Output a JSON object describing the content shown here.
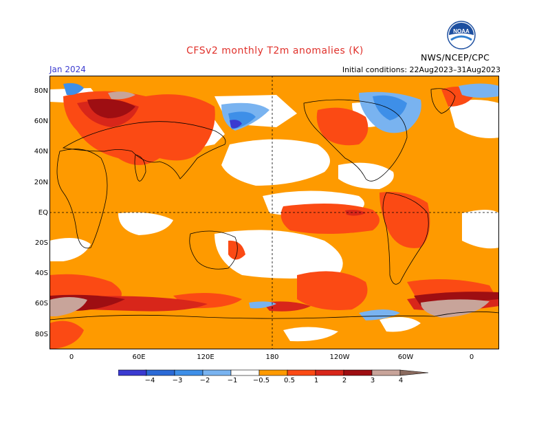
{
  "title": "CFSv2 monthly T2m anomalies (K)",
  "month": "Jan 2024",
  "initial_conditions": "Initial conditions: 22Aug2023–31Aug2023",
  "agency": "NWS/NCEP/CPC",
  "logo": {
    "icon": "noaa-logo",
    "text": "NOAA"
  },
  "lat_labels": [
    "80N",
    "60N",
    "40N",
    "20N",
    "EQ",
    "20S",
    "40S",
    "60S",
    "80S"
  ],
  "lon_labels": [
    "0",
    "60E",
    "120E",
    "180",
    "120W",
    "60W",
    "0"
  ],
  "colorbar": {
    "labels": [
      "−4",
      "−3",
      "−2",
      "−1",
      "−0.5",
      "0.5",
      "1",
      "2",
      "3",
      "4"
    ],
    "colors": [
      "#7a1fa2",
      "#3a3ad0",
      "#2b6ad6",
      "#3e8fe8",
      "#79b3f0",
      "#ffffff",
      "#fe9a00",
      "#fb4a14",
      "#d8261a",
      "#9e0e12",
      "#c8a49a",
      "#8a6a5e"
    ]
  },
  "anomaly_colors": {
    "warm_0_5": "#fe9a00",
    "warm_1": "#fb4a14",
    "warm_2": "#d8261a",
    "warm_3": "#9e0e12",
    "warm_4": "#c8a49a",
    "cool_0_5": "#79b3f0",
    "cool_1": "#3e8fe8",
    "cool_2": "#2b6ad6",
    "cool_3": "#3a3ad0"
  }
}
